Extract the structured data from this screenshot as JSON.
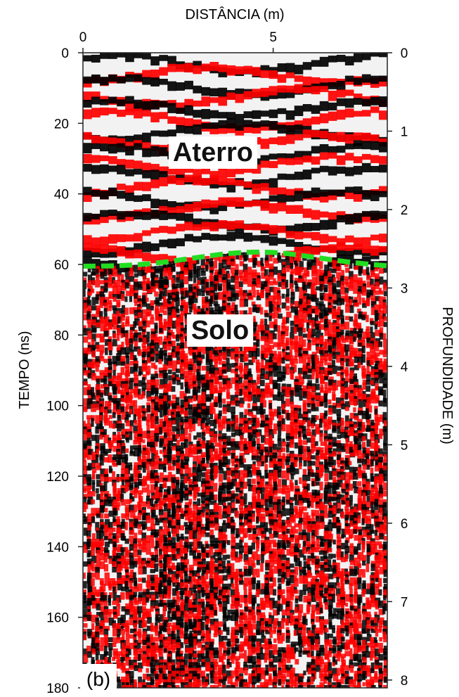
{
  "chart_data": {
    "type": "heatmap",
    "title": "",
    "top_axis": {
      "label": "DISTÂNCIA (m)",
      "range": [
        0,
        8
      ],
      "ticks": [
        0,
        5
      ]
    },
    "left_axis": {
      "label": "TEMPO (ns)",
      "range": [
        0,
        180
      ],
      "ticks": [
        0,
        20,
        40,
        60,
        80,
        100,
        120,
        140,
        160,
        180
      ]
    },
    "right_axis": {
      "label": "PROFUNDIDADE (m)",
      "range": [
        0,
        8.1
      ],
      "ticks": [
        0,
        1,
        2,
        3,
        4,
        5,
        6,
        7,
        8
      ]
    },
    "grid": false,
    "colormap": [
      "#000000",
      "#ffffff",
      "#ff0000"
    ],
    "interface": {
      "color": "#22dd22",
      "style": "dashed",
      "points": [
        [
          0,
          60.5
        ],
        [
          1,
          60.4
        ],
        [
          2,
          59.6
        ],
        [
          3,
          58.0
        ],
        [
          4,
          56.6
        ],
        [
          5,
          56.4
        ],
        [
          6,
          57.8
        ],
        [
          7,
          59.4
        ],
        [
          8,
          60.4
        ]
      ]
    },
    "annotations": [
      {
        "text": "Aterro",
        "x": 4.2,
        "y": 28
      },
      {
        "text": "Solo",
        "x": 4.0,
        "y": 78.5
      },
      {
        "text": "(b)",
        "x": 0.6,
        "y": 178
      }
    ]
  }
}
